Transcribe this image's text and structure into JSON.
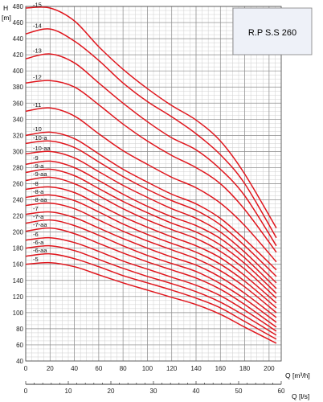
{
  "chart_data": {
    "type": "line",
    "title": "R.P S.S 260",
    "y_axis": {
      "label": "H",
      "unit": "[m]",
      "min": 40,
      "max": 480,
      "major_step": 20,
      "minor_step": 5
    },
    "x_axis_primary": {
      "label": "Q [m³/h]",
      "min": 0,
      "max": 210,
      "major_step": 20,
      "minor_step": 5
    },
    "x_axis_secondary": {
      "label": "Q [l/s]",
      "min": 0,
      "max": 60,
      "major_step": 10,
      "minor_step": 2
    },
    "grid": true,
    "line_color": "#e0161d",
    "series": [
      {
        "name": "15",
        "points": [
          [
            0,
            478
          ],
          [
            20,
            478
          ],
          [
            40,
            462
          ],
          [
            60,
            430
          ],
          [
            80,
            402
          ],
          [
            100,
            378
          ],
          [
            120,
            357
          ],
          [
            140,
            339
          ],
          [
            160,
            313
          ],
          [
            180,
            272
          ],
          [
            206,
            205
          ]
        ]
      },
      {
        "name": "14",
        "points": [
          [
            0,
            446
          ],
          [
            20,
            452
          ],
          [
            40,
            437
          ],
          [
            60,
            413
          ],
          [
            80,
            385
          ],
          [
            100,
            362
          ],
          [
            120,
            343
          ],
          [
            140,
            322
          ],
          [
            160,
            296
          ],
          [
            180,
            260
          ],
          [
            206,
            193
          ]
        ]
      },
      {
        "name": "13",
        "points": [
          [
            0,
            415
          ],
          [
            20,
            421
          ],
          [
            40,
            410
          ],
          [
            60,
            385
          ],
          [
            80,
            360
          ],
          [
            100,
            337
          ],
          [
            120,
            317
          ],
          [
            140,
            302
          ],
          [
            160,
            278
          ],
          [
            180,
            245
          ],
          [
            206,
            183
          ]
        ]
      },
      {
        "name": "12",
        "points": [
          [
            0,
            385
          ],
          [
            20,
            388
          ],
          [
            40,
            380
          ],
          [
            60,
            358
          ],
          [
            80,
            334
          ],
          [
            100,
            313
          ],
          [
            120,
            295
          ],
          [
            140,
            280
          ],
          [
            160,
            260
          ],
          [
            180,
            228
          ],
          [
            206,
            175
          ]
        ]
      },
      {
        "name": "11",
        "points": [
          [
            0,
            350
          ],
          [
            20,
            354
          ],
          [
            40,
            344
          ],
          [
            60,
            322
          ],
          [
            80,
            301
          ],
          [
            100,
            284
          ],
          [
            120,
            268
          ],
          [
            140,
            255
          ],
          [
            160,
            236
          ],
          [
            180,
            208
          ],
          [
            206,
            163
          ]
        ]
      },
      {
        "name": "10",
        "points": [
          [
            0,
            320
          ],
          [
            20,
            324
          ],
          [
            40,
            316
          ],
          [
            60,
            297
          ],
          [
            80,
            278
          ],
          [
            100,
            262
          ],
          [
            120,
            247
          ],
          [
            140,
            235
          ],
          [
            160,
            217
          ],
          [
            180,
            191
          ],
          [
            206,
            153
          ]
        ]
      },
      {
        "name": "10-a",
        "points": [
          [
            0,
            310
          ],
          [
            20,
            313
          ],
          [
            40,
            305
          ],
          [
            60,
            287
          ],
          [
            80,
            269
          ],
          [
            100,
            253
          ],
          [
            120,
            239
          ],
          [
            140,
            227
          ],
          [
            160,
            209
          ],
          [
            180,
            183
          ],
          [
            206,
            145
          ]
        ]
      },
      {
        "name": "10-aa",
        "points": [
          [
            0,
            297
          ],
          [
            20,
            300
          ],
          [
            40,
            292
          ],
          [
            60,
            275
          ],
          [
            80,
            258
          ],
          [
            100,
            243
          ],
          [
            120,
            229
          ],
          [
            140,
            217
          ],
          [
            160,
            200
          ],
          [
            180,
            175
          ],
          [
            206,
            137
          ]
        ]
      },
      {
        "name": "9",
        "points": [
          [
            0,
            284
          ],
          [
            20,
            288
          ],
          [
            40,
            280
          ],
          [
            60,
            264
          ],
          [
            80,
            247
          ],
          [
            100,
            232
          ],
          [
            120,
            219
          ],
          [
            140,
            208
          ],
          [
            160,
            192
          ],
          [
            180,
            168
          ],
          [
            206,
            130
          ]
        ]
      },
      {
        "name": "9-a",
        "points": [
          [
            0,
            274
          ],
          [
            20,
            278
          ],
          [
            40,
            270
          ],
          [
            60,
            254
          ],
          [
            80,
            238
          ],
          [
            100,
            224
          ],
          [
            120,
            211
          ],
          [
            140,
            200
          ],
          [
            160,
            184
          ],
          [
            180,
            161
          ],
          [
            206,
            124
          ]
        ]
      },
      {
        "name": "9-aa",
        "points": [
          [
            0,
            264
          ],
          [
            20,
            268
          ],
          [
            40,
            260
          ],
          [
            60,
            245
          ],
          [
            80,
            229
          ],
          [
            100,
            215
          ],
          [
            120,
            203
          ],
          [
            140,
            192
          ],
          [
            160,
            176
          ],
          [
            180,
            154
          ],
          [
            206,
            118
          ]
        ]
      },
      {
        "name": "8",
        "points": [
          [
            0,
            253
          ],
          [
            20,
            256
          ],
          [
            40,
            249
          ],
          [
            60,
            234
          ],
          [
            80,
            219
          ],
          [
            100,
            206
          ],
          [
            120,
            194
          ],
          [
            140,
            183
          ],
          [
            160,
            168
          ],
          [
            180,
            146
          ],
          [
            206,
            112
          ]
        ]
      },
      {
        "name": "8-a",
        "points": [
          [
            0,
            243
          ],
          [
            20,
            246
          ],
          [
            40,
            239
          ],
          [
            60,
            225
          ],
          [
            80,
            210
          ],
          [
            100,
            197
          ],
          [
            120,
            186
          ],
          [
            140,
            175
          ],
          [
            160,
            160
          ],
          [
            180,
            139
          ],
          [
            206,
            106
          ]
        ]
      },
      {
        "name": "8-aa",
        "points": [
          [
            0,
            233
          ],
          [
            20,
            236
          ],
          [
            40,
            229
          ],
          [
            60,
            215
          ],
          [
            80,
            201
          ],
          [
            100,
            189
          ],
          [
            120,
            178
          ],
          [
            140,
            167
          ],
          [
            160,
            152
          ],
          [
            180,
            132
          ],
          [
            206,
            100
          ]
        ]
      },
      {
        "name": "7",
        "points": [
          [
            0,
            222
          ],
          [
            20,
            225
          ],
          [
            40,
            218
          ],
          [
            60,
            205
          ],
          [
            80,
            192
          ],
          [
            100,
            180
          ],
          [
            120,
            169
          ],
          [
            140,
            159
          ],
          [
            160,
            144
          ],
          [
            180,
            124
          ],
          [
            206,
            94
          ]
        ]
      },
      {
        "name": "7-a",
        "points": [
          [
            0,
            211
          ],
          [
            20,
            215
          ],
          [
            40,
            208
          ],
          [
            60,
            196
          ],
          [
            80,
            183
          ],
          [
            100,
            171
          ],
          [
            120,
            161
          ],
          [
            140,
            151
          ],
          [
            160,
            136
          ],
          [
            180,
            117
          ],
          [
            206,
            88
          ]
        ]
      },
      {
        "name": "7-aa",
        "points": [
          [
            0,
            201
          ],
          [
            20,
            205
          ],
          [
            40,
            198
          ],
          [
            60,
            186
          ],
          [
            80,
            174
          ],
          [
            100,
            163
          ],
          [
            120,
            153
          ],
          [
            140,
            143
          ],
          [
            160,
            129
          ],
          [
            180,
            110
          ],
          [
            206,
            82
          ]
        ]
      },
      {
        "name": "6",
        "points": [
          [
            0,
            190
          ],
          [
            20,
            193
          ],
          [
            40,
            187
          ],
          [
            60,
            176
          ],
          [
            80,
            164
          ],
          [
            100,
            154
          ],
          [
            120,
            144
          ],
          [
            140,
            134
          ],
          [
            160,
            121
          ],
          [
            180,
            103
          ],
          [
            206,
            77
          ]
        ]
      },
      {
        "name": "6-a",
        "points": [
          [
            0,
            180
          ],
          [
            20,
            183
          ],
          [
            40,
            177
          ],
          [
            60,
            166
          ],
          [
            80,
            155
          ],
          [
            100,
            145
          ],
          [
            120,
            136
          ],
          [
            140,
            126
          ],
          [
            160,
            113
          ],
          [
            180,
            96
          ],
          [
            206,
            72
          ]
        ]
      },
      {
        "name": "6-aa",
        "points": [
          [
            0,
            170
          ],
          [
            20,
            173
          ],
          [
            40,
            167
          ],
          [
            60,
            157
          ],
          [
            80,
            146
          ],
          [
            100,
            137
          ],
          [
            120,
            128
          ],
          [
            140,
            118
          ],
          [
            160,
            106
          ],
          [
            180,
            89
          ],
          [
            206,
            67
          ]
        ]
      },
      {
        "name": "5",
        "points": [
          [
            0,
            160
          ],
          [
            20,
            162
          ],
          [
            40,
            157
          ],
          [
            60,
            147
          ],
          [
            80,
            137
          ],
          [
            100,
            128
          ],
          [
            120,
            119
          ],
          [
            140,
            110
          ],
          [
            160,
            98
          ],
          [
            180,
            82
          ],
          [
            206,
            62
          ]
        ]
      }
    ]
  }
}
